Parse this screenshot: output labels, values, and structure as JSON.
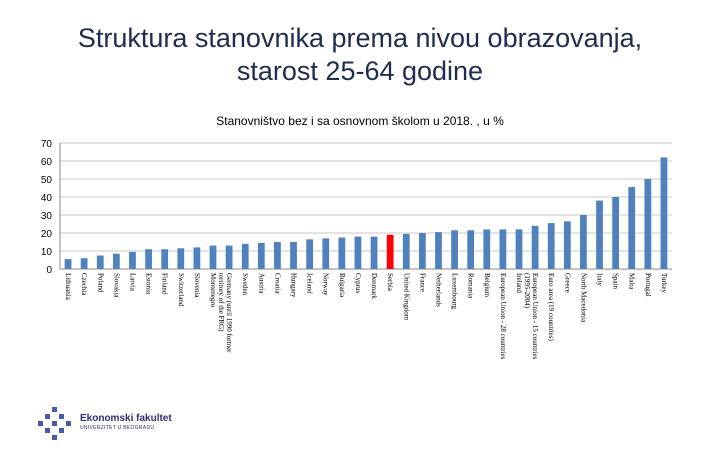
{
  "slide": {
    "title_line1": "Struktura stanovnika prema nivou obrazovanja,",
    "title_line2": "starost 25-64 godine"
  },
  "logo": {
    "name": "Ekonomski fakultet",
    "subtitle": "UNIVERZITET U BEOGRADU"
  },
  "chart_data": {
    "type": "bar",
    "title": "Stanovništvo bez i sa osnovnom školom u 2018. , u %",
    "xlabel": "",
    "ylabel": "",
    "ylim": [
      0,
      70
    ],
    "yticks": [
      0,
      10,
      20,
      30,
      40,
      50,
      60,
      70
    ],
    "grid": true,
    "legend": "none",
    "bar_color": "#4f81bd",
    "highlight_color": "#ff0000",
    "highlight_category": "Serbia",
    "categories": [
      "Lithuania",
      "Czechia",
      "Poland",
      "Slovakia",
      "Latvia",
      "Estonia",
      "Finland",
      "Switzerland",
      "Slovenia",
      "Montenegro",
      "Germany (until 1990 former territory of the FRG)",
      "Sweden",
      "Austria",
      "Croatia",
      "Hungary",
      "Iceland",
      "Norway",
      "Bulgaria",
      "Cyprus",
      "Denmark",
      "Serbia",
      "United Kingdom",
      "France",
      "Netherlands",
      "Luxembourg",
      "Romania",
      "Belgium",
      "European Union - 28 countries",
      "Ireland",
      "European Union - 15 countries (1995-2004)",
      "Euro area (19 countries)",
      "Greece",
      "North Macedonia",
      "Italy",
      "Spain",
      "Malta",
      "Portugal",
      "Turkey"
    ],
    "values": [
      5.5,
      6,
      7.5,
      8.5,
      9.5,
      11,
      11,
      11.5,
      12,
      13,
      13,
      14,
      14.5,
      15,
      15,
      16.5,
      17,
      17.5,
      18,
      18,
      19,
      19.5,
      20,
      20.5,
      21.5,
      21.5,
      22,
      22,
      22,
      24,
      25.5,
      26.5,
      30,
      38,
      40,
      45.5,
      50,
      62
    ]
  }
}
